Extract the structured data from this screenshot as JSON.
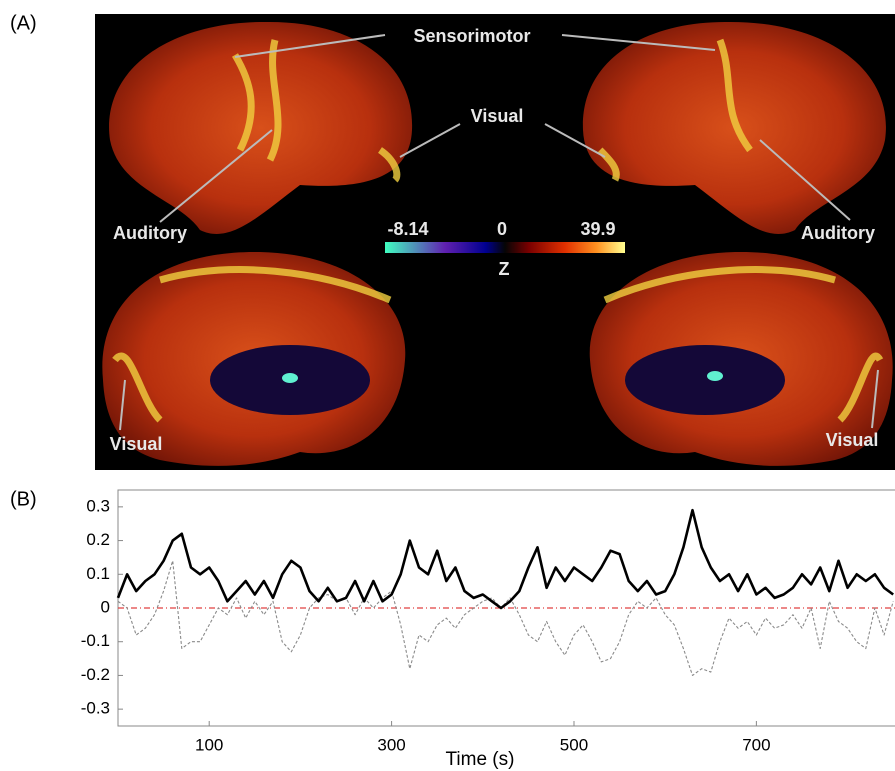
{
  "panel_a": {
    "label": "(A)",
    "annotations": [
      "Sensorimotor",
      "Visual",
      "Auditory",
      "Auditory",
      "Visual",
      "Visual"
    ],
    "colorbar": {
      "ticks": [
        -8.14,
        0,
        39.9
      ],
      "title": "Z"
    }
  },
  "panel_b": {
    "label": "(B)"
  },
  "chart_data": {
    "type": "line",
    "xlabel": "Time (s)",
    "x": [
      0,
      10,
      20,
      30,
      40,
      50,
      60,
      70,
      80,
      90,
      100,
      110,
      120,
      130,
      140,
      150,
      160,
      170,
      180,
      190,
      200,
      210,
      220,
      230,
      240,
      250,
      260,
      270,
      280,
      290,
      300,
      310,
      320,
      330,
      340,
      350,
      360,
      370,
      380,
      390,
      400,
      410,
      420,
      430,
      440,
      450,
      460,
      470,
      480,
      490,
      500,
      510,
      520,
      530,
      540,
      550,
      560,
      570,
      580,
      590,
      600,
      610,
      620,
      630,
      640,
      650,
      660,
      670,
      680,
      690,
      700,
      710,
      720,
      730,
      740,
      750,
      760,
      770,
      780,
      790,
      800,
      810,
      820,
      830,
      840,
      850
    ],
    "series": [
      {
        "color": "#000000",
        "style": "solid",
        "values": [
          0.03,
          0.1,
          0.05,
          0.08,
          0.1,
          0.14,
          0.2,
          0.22,
          0.12,
          0.1,
          0.12,
          0.08,
          0.02,
          0.05,
          0.08,
          0.04,
          0.08,
          0.03,
          0.1,
          0.14,
          0.12,
          0.05,
          0.02,
          0.06,
          0.02,
          0.03,
          0.08,
          0.02,
          0.08,
          0.02,
          0.04,
          0.1,
          0.2,
          0.12,
          0.1,
          0.17,
          0.08,
          0.12,
          0.05,
          0.03,
          0.04,
          0.02,
          0.0,
          0.02,
          0.05,
          0.12,
          0.18,
          0.06,
          0.12,
          0.08,
          0.12,
          0.1,
          0.08,
          0.12,
          0.17,
          0.16,
          0.08,
          0.05,
          0.08,
          0.04,
          0.05,
          0.1,
          0.18,
          0.29,
          0.18,
          0.12,
          0.08,
          0.1,
          0.05,
          0.1,
          0.04,
          0.06,
          0.03,
          0.04,
          0.06,
          0.1,
          0.07,
          0.12,
          0.05,
          0.14,
          0.06,
          0.1,
          0.08,
          0.1,
          0.06,
          0.04
        ]
      },
      {
        "color": "#8a8a8a",
        "style": "dashed",
        "values": [
          0.02,
          0.0,
          -0.08,
          -0.06,
          -0.02,
          0.05,
          0.14,
          -0.12,
          -0.1,
          -0.1,
          -0.05,
          0.0,
          -0.02,
          0.03,
          -0.03,
          0.02,
          -0.02,
          0.02,
          -0.1,
          -0.13,
          -0.08,
          0.0,
          0.03,
          0.04,
          0.02,
          0.03,
          -0.02,
          0.03,
          0.0,
          0.03,
          0.05,
          -0.05,
          -0.18,
          -0.08,
          -0.1,
          -0.05,
          -0.03,
          -0.06,
          -0.02,
          0.0,
          0.02,
          0.03,
          0.0,
          0.03,
          -0.02,
          -0.08,
          -0.1,
          -0.04,
          -0.1,
          -0.14,
          -0.08,
          -0.05,
          -0.1,
          -0.16,
          -0.15,
          -0.1,
          -0.02,
          0.02,
          0.0,
          0.03,
          -0.02,
          -0.05,
          -0.12,
          -0.2,
          -0.18,
          -0.19,
          -0.1,
          -0.03,
          -0.06,
          -0.04,
          -0.08,
          -0.03,
          -0.06,
          -0.05,
          -0.02,
          -0.06,
          0.0,
          -0.12,
          0.02,
          -0.04,
          -0.06,
          -0.1,
          -0.12,
          0.0,
          -0.08,
          0.02
        ]
      }
    ],
    "reference_line": {
      "value": 0,
      "color": "#e04040"
    },
    "xlim": [
      0,
      852
    ],
    "xticks": [
      100,
      300,
      500,
      700
    ],
    "ylim": [
      -0.35,
      0.35
    ],
    "yticks": [
      0.3,
      0.2,
      0.1,
      0,
      -0.1,
      -0.2,
      -0.3
    ]
  }
}
